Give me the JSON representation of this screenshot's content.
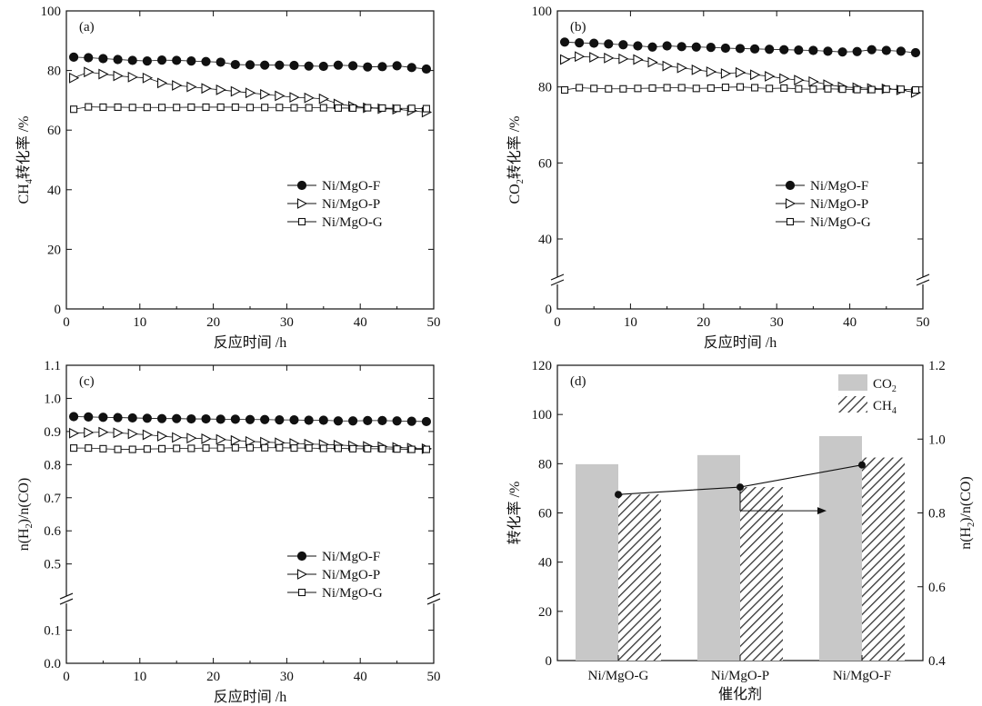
{
  "colors": {
    "ink": "#111111",
    "bar_co2": "#c8c8c8",
    "bar_ch4_hatch": "#333333"
  },
  "chart_data": [
    {
      "id": "a",
      "type": "line",
      "label": "(a)",
      "xlabel": "反应时间 /h",
      "ylabel": "CH4转化率 /%",
      "ylabel_main": "CH",
      "ylabel_sub": "4",
      "ylabel_rest": "转化率 /%",
      "xlim": [
        0,
        50
      ],
      "ylim": [
        0,
        100
      ],
      "xticks": [
        0,
        10,
        20,
        30,
        40,
        50
      ],
      "yticks": [
        0,
        20,
        40,
        60,
        80,
        100
      ],
      "xtick_labels": [
        "0",
        "10",
        "20",
        "30",
        "40",
        "50"
      ],
      "ytick_labels": [
        "0",
        "20",
        "40",
        "60",
        "80",
        "100"
      ],
      "legend_position": "right-middle",
      "series": [
        {
          "name": "Ni/MgO-F",
          "marker": "filled-circle",
          "x": [
            1,
            3,
            5,
            7,
            9,
            11,
            13,
            15,
            17,
            19,
            21,
            23,
            25,
            27,
            29,
            31,
            33,
            35,
            37,
            39,
            41,
            43,
            45,
            47,
            49
          ],
          "y": [
            84.5,
            84.3,
            84.0,
            83.7,
            83.4,
            83.2,
            83.5,
            83.4,
            83.2,
            83.0,
            82.8,
            82.0,
            81.9,
            81.8,
            81.8,
            81.7,
            81.5,
            81.4,
            81.8,
            81.6,
            81.2,
            81.3,
            81.6,
            81.0,
            80.5
          ]
        },
        {
          "name": "Ni/MgO-P",
          "marker": "open-triangle-right",
          "x": [
            1,
            3,
            5,
            7,
            9,
            11,
            13,
            15,
            17,
            19,
            21,
            23,
            25,
            27,
            29,
            31,
            33,
            35,
            37,
            39,
            41,
            43,
            45,
            47,
            49
          ],
          "y": [
            77.5,
            79.5,
            78.8,
            78.2,
            77.8,
            77.5,
            75.8,
            75.0,
            74.5,
            74.0,
            73.5,
            73.0,
            72.5,
            72.0,
            71.5,
            71.0,
            70.8,
            70.5,
            68.8,
            68.0,
            67.5,
            67.2,
            67.0,
            66.5,
            66.0
          ]
        },
        {
          "name": "Ni/MgO-G",
          "marker": "open-square",
          "x": [
            1,
            3,
            5,
            7,
            9,
            11,
            13,
            15,
            17,
            19,
            21,
            23,
            25,
            27,
            29,
            31,
            33,
            35,
            37,
            39,
            41,
            43,
            45,
            47,
            49
          ],
          "y": [
            67.0,
            67.8,
            67.7,
            67.7,
            67.6,
            67.6,
            67.6,
            67.6,
            67.7,
            67.7,
            67.7,
            67.7,
            67.6,
            67.6,
            67.6,
            67.5,
            67.5,
            67.5,
            67.4,
            67.4,
            67.5,
            67.4,
            67.3,
            67.3,
            67.2
          ]
        }
      ]
    },
    {
      "id": "b",
      "type": "line",
      "label": "(b)",
      "xlabel": "反应时间 /h",
      "ylabel": "CO2转化率 /%",
      "ylabel_main": "CO",
      "ylabel_sub": "2",
      "ylabel_rest": "转化率 /%",
      "xlim": [
        0,
        50
      ],
      "ylim": [
        0,
        100
      ],
      "axis_break": true,
      "xticks": [
        0,
        10,
        20,
        30,
        40,
        50
      ],
      "yticks": [
        0,
        40,
        60,
        80,
        100
      ],
      "xtick_labels": [
        "0",
        "10",
        "20",
        "30",
        "40",
        "50"
      ],
      "ytick_labels": [
        "0",
        "40",
        "60",
        "80",
        "100"
      ],
      "legend_position": "right-middle",
      "series": [
        {
          "name": "Ni/MgO-F",
          "marker": "filled-circle",
          "x": [
            1,
            3,
            5,
            7,
            9,
            11,
            13,
            15,
            17,
            19,
            21,
            23,
            25,
            27,
            29,
            31,
            33,
            35,
            37,
            39,
            41,
            43,
            45,
            47,
            49
          ],
          "y": [
            91.8,
            91.6,
            91.5,
            91.3,
            91.1,
            90.8,
            90.5,
            90.8,
            90.6,
            90.5,
            90.4,
            90.2,
            90.1,
            90.0,
            89.9,
            89.8,
            89.7,
            89.6,
            89.4,
            89.2,
            89.3,
            89.8,
            89.6,
            89.4,
            89.0
          ]
        },
        {
          "name": "Ni/MgO-P",
          "marker": "open-triangle-right",
          "x": [
            1,
            3,
            5,
            7,
            9,
            11,
            13,
            15,
            17,
            19,
            21,
            23,
            25,
            27,
            29,
            31,
            33,
            35,
            37,
            39,
            41,
            43,
            45,
            47,
            49
          ],
          "y": [
            87.2,
            88.0,
            87.8,
            87.6,
            87.4,
            87.2,
            86.5,
            85.5,
            85.0,
            84.5,
            84.0,
            83.5,
            83.8,
            83.2,
            82.8,
            82.2,
            81.8,
            81.4,
            80.6,
            80.0,
            79.8,
            79.6,
            79.5,
            79.2,
            78.5
          ]
        },
        {
          "name": "Ni/MgO-G",
          "marker": "open-square",
          "x": [
            1,
            3,
            5,
            7,
            9,
            11,
            13,
            15,
            17,
            19,
            21,
            23,
            25,
            27,
            29,
            31,
            33,
            35,
            37,
            39,
            41,
            43,
            45,
            47,
            49
          ],
          "y": [
            79.2,
            79.8,
            79.6,
            79.5,
            79.5,
            79.6,
            79.7,
            79.8,
            79.8,
            79.6,
            79.7,
            79.9,
            80.0,
            79.8,
            79.6,
            79.7,
            79.5,
            79.4,
            79.5,
            79.4,
            79.3,
            79.3,
            79.4,
            79.4,
            79.2
          ]
        }
      ]
    },
    {
      "id": "c",
      "type": "line",
      "label": "(c)",
      "xlabel": "反应时间 /h",
      "ylabel": "n(H2)/n(CO)",
      "ylabel_main": "n(H",
      "ylabel_sub": "2",
      "ylabel_rest": ")/n(CO)",
      "xlim": [
        0,
        50
      ],
      "ylim": [
        0,
        1.1
      ],
      "axis_break": true,
      "xticks": [
        0,
        10,
        20,
        30,
        40,
        50
      ],
      "yticks": [
        0,
        0.1,
        0.5,
        0.6,
        0.7,
        0.8,
        0.9,
        1.0,
        1.1
      ],
      "xtick_labels": [
        "0",
        "10",
        "20",
        "30",
        "40",
        "50"
      ],
      "ytick_labels": [
        "0.0",
        "0.1",
        "0.5",
        "0.6",
        "0.7",
        "0.8",
        "0.9",
        "1.0",
        "1.1"
      ],
      "legend_position": "right-lower",
      "series": [
        {
          "name": "Ni/MgO-F",
          "marker": "filled-circle",
          "x": [
            1,
            3,
            5,
            7,
            9,
            11,
            13,
            15,
            17,
            19,
            21,
            23,
            25,
            27,
            29,
            31,
            33,
            35,
            37,
            39,
            41,
            43,
            45,
            47,
            49
          ],
          "y": [
            0.945,
            0.944,
            0.943,
            0.942,
            0.941,
            0.94,
            0.939,
            0.939,
            0.938,
            0.938,
            0.937,
            0.937,
            0.936,
            0.936,
            0.935,
            0.935,
            0.934,
            0.934,
            0.932,
            0.932,
            0.933,
            0.933,
            0.932,
            0.931,
            0.93
          ]
        },
        {
          "name": "Ni/MgO-P",
          "marker": "open-triangle-right",
          "x": [
            1,
            3,
            5,
            7,
            9,
            11,
            13,
            15,
            17,
            19,
            21,
            23,
            25,
            27,
            29,
            31,
            33,
            35,
            37,
            39,
            41,
            43,
            45,
            47,
            49
          ],
          "y": [
            0.895,
            0.897,
            0.898,
            0.896,
            0.893,
            0.89,
            0.886,
            0.882,
            0.88,
            0.878,
            0.876,
            0.873,
            0.87,
            0.868,
            0.866,
            0.864,
            0.862,
            0.861,
            0.859,
            0.857,
            0.855,
            0.854,
            0.852,
            0.85,
            0.848
          ]
        },
        {
          "name": "Ni/MgO-G",
          "marker": "open-square",
          "x": [
            1,
            3,
            5,
            7,
            9,
            11,
            13,
            15,
            17,
            19,
            21,
            23,
            25,
            27,
            29,
            31,
            33,
            35,
            37,
            39,
            41,
            43,
            45,
            47,
            49
          ],
          "y": [
            0.85,
            0.85,
            0.848,
            0.846,
            0.846,
            0.847,
            0.848,
            0.849,
            0.849,
            0.85,
            0.85,
            0.851,
            0.851,
            0.851,
            0.851,
            0.85,
            0.85,
            0.849,
            0.849,
            0.848,
            0.848,
            0.848,
            0.847,
            0.846,
            0.846
          ]
        }
      ]
    },
    {
      "id": "d",
      "type": "bar",
      "label": "(d)",
      "xlabel": "催化剂",
      "ylabel": "转化率 /%",
      "y2label": "n(H2)/n(CO)",
      "y2label_main": "n(H",
      "y2label_sub": "2",
      "y2label_rest": ")/n(CO)",
      "categories": [
        "Ni/MgO-G",
        "Ni/MgO-P",
        "Ni/MgO-F"
      ],
      "ylim": [
        0,
        120
      ],
      "yticks": [
        0,
        20,
        40,
        60,
        80,
        100,
        120
      ],
      "ytick_labels": [
        "0",
        "20",
        "40",
        "60",
        "80",
        "100",
        "120"
      ],
      "y2lim": [
        0.4,
        1.2
      ],
      "y2ticks": [
        0.4,
        0.6,
        0.8,
        1.0,
        1.2
      ],
      "y2tick_labels": [
        "0.4",
        "0.6",
        "0.8",
        "1.0",
        "1.2"
      ],
      "legend_position": "top-right",
      "series": [
        {
          "name": "CO2",
          "name_main": "CO",
          "name_sub": "2",
          "style": "solid-gray",
          "values": [
            79.8,
            83.5,
            91.2
          ]
        },
        {
          "name": "CH4",
          "name_main": "CH",
          "name_sub": "4",
          "style": "hatched",
          "values": [
            67.5,
            70.5,
            82.5
          ]
        },
        {
          "name": "n(H2)/n(CO)",
          "style": "line-filled-circle",
          "axis": "right",
          "values": [
            0.85,
            0.87,
            0.93
          ]
        }
      ],
      "arrow_direction": "right"
    }
  ]
}
